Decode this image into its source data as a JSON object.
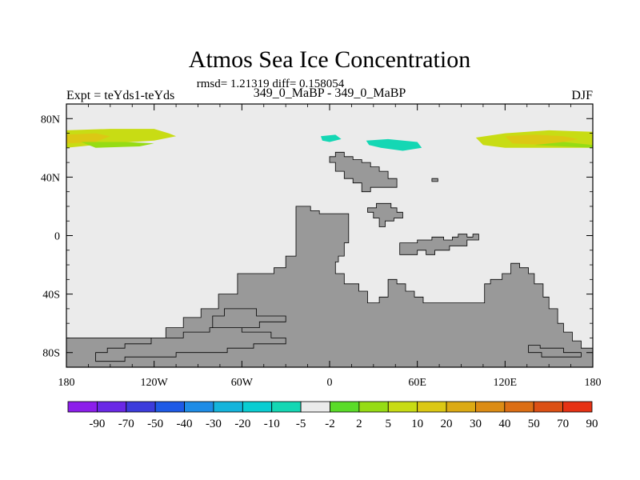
{
  "chart_data": {
    "type": "heatmap",
    "title": "Atmos Sea Ice Concentration",
    "stats_line": "rmsd= 1.21319 diff= 0.158054",
    "left_label": "Expt = teYds1-teYds",
    "center_label": "349_0_MaBP - 349_0_MaBP",
    "right_label": "DJF",
    "x_ticks": [
      {
        "value": -180,
        "label": "180"
      },
      {
        "value": -120,
        "label": "120W"
      },
      {
        "value": -60,
        "label": "60W"
      },
      {
        "value": 0,
        "label": "0"
      },
      {
        "value": 60,
        "label": "60E"
      },
      {
        "value": 120,
        "label": "120E"
      },
      {
        "value": 180,
        "label": "180"
      }
    ],
    "y_ticks": [
      {
        "value": 80,
        "label": "80N"
      },
      {
        "value": 40,
        "label": "40N"
      },
      {
        "value": 0,
        "label": "0"
      },
      {
        "value": -40,
        "label": "40S"
      },
      {
        "value": -80,
        "label": "80S"
      }
    ],
    "xlim": [
      -180,
      180
    ],
    "ylim": [
      -90,
      90
    ],
    "colorbar": {
      "colors": [
        "#8c1eeb",
        "#6a28e6",
        "#3c3cdc",
        "#1e5ae6",
        "#1e8ce6",
        "#14b4dc",
        "#0acdd2",
        "#14d7b4",
        "#ebebeb",
        "#5adc28",
        "#96dc14",
        "#c8dc14",
        "#dcc814",
        "#dcaa14",
        "#dc8c14",
        "#dc6e14",
        "#dc5014",
        "#e63214"
      ],
      "labels": [
        "-90",
        "-70",
        "-50",
        "-40",
        "-30",
        "-20",
        "-10",
        "-5",
        "-2",
        "2",
        "5",
        "10",
        "20",
        "30",
        "40",
        "50",
        "70",
        "90"
      ]
    },
    "land_color": "#999999",
    "background_color": "#ebebeb",
    "land_regions": [
      {
        "name": "north-atlantic-continent",
        "polygon": [
          [
            4,
            57
          ],
          [
            10,
            57
          ],
          [
            10,
            54
          ],
          [
            16,
            54
          ],
          [
            16,
            52
          ],
          [
            22,
            52
          ],
          [
            22,
            50
          ],
          [
            28,
            50
          ],
          [
            28,
            47
          ],
          [
            34,
            47
          ],
          [
            34,
            44
          ],
          [
            40,
            44
          ],
          [
            40,
            39
          ],
          [
            46,
            39
          ],
          [
            46,
            33
          ],
          [
            28,
            33
          ],
          [
            28,
            30
          ],
          [
            22,
            30
          ],
          [
            22,
            36
          ],
          [
            16,
            36
          ],
          [
            16,
            39
          ],
          [
            10,
            39
          ],
          [
            10,
            44
          ],
          [
            4,
            44
          ],
          [
            4,
            50
          ],
          [
            0,
            50
          ],
          [
            0,
            54
          ],
          [
            4,
            54
          ]
        ]
      },
      {
        "name": "small-island-east",
        "polygon": [
          [
            70,
            39
          ],
          [
            74,
            39
          ],
          [
            74,
            37
          ],
          [
            70,
            37
          ]
        ]
      },
      {
        "name": "mid-continent",
        "polygon": [
          [
            32,
            22
          ],
          [
            42,
            22
          ],
          [
            42,
            19
          ],
          [
            46,
            19
          ],
          [
            46,
            16
          ],
          [
            50,
            16
          ],
          [
            50,
            12
          ],
          [
            44,
            12
          ],
          [
            44,
            10
          ],
          [
            38,
            10
          ],
          [
            38,
            6
          ],
          [
            34,
            6
          ],
          [
            34,
            12
          ],
          [
            30,
            12
          ],
          [
            30,
            16
          ],
          [
            26,
            16
          ],
          [
            26,
            19
          ],
          [
            32,
            19
          ]
        ]
      },
      {
        "name": "main-pangea",
        "polygon": [
          [
            -23,
            20
          ],
          [
            -13,
            20
          ],
          [
            -13,
            17
          ],
          [
            -7,
            17
          ],
          [
            -7,
            15
          ],
          [
            13,
            15
          ],
          [
            13,
            -5
          ],
          [
            10,
            -5
          ],
          [
            10,
            -14
          ],
          [
            6,
            -14
          ],
          [
            6,
            -18
          ],
          [
            4,
            -18
          ],
          [
            4,
            -26
          ],
          [
            10,
            -26
          ],
          [
            10,
            -33
          ],
          [
            20,
            -33
          ],
          [
            20,
            -38
          ],
          [
            26,
            -38
          ],
          [
            26,
            -46
          ],
          [
            34,
            -46
          ],
          [
            34,
            -42
          ],
          [
            40,
            -42
          ],
          [
            40,
            -30
          ],
          [
            46,
            -30
          ],
          [
            46,
            -33
          ],
          [
            52,
            -33
          ],
          [
            52,
            -38
          ],
          [
            58,
            -38
          ],
          [
            58,
            -42
          ],
          [
            64,
            -42
          ],
          [
            64,
            -46
          ],
          [
            106,
            -46
          ],
          [
            106,
            -33
          ],
          [
            110,
            -33
          ],
          [
            110,
            -30
          ],
          [
            118,
            -30
          ],
          [
            118,
            -26
          ],
          [
            124,
            -26
          ],
          [
            124,
            -19
          ],
          [
            130,
            -19
          ],
          [
            130,
            -22
          ],
          [
            136,
            -22
          ],
          [
            136,
            -26
          ],
          [
            140,
            -26
          ],
          [
            140,
            -33
          ],
          [
            146,
            -33
          ],
          [
            146,
            -42
          ],
          [
            150,
            -42
          ],
          [
            150,
            -50
          ],
          [
            156,
            -50
          ],
          [
            156,
            -60
          ],
          [
            160,
            -60
          ],
          [
            160,
            -66
          ],
          [
            166,
            -66
          ],
          [
            166,
            -72
          ],
          [
            172,
            -72
          ],
          [
            172,
            -77
          ],
          [
            180,
            -77
          ],
          [
            180,
            -90
          ],
          [
            -180,
            -90
          ],
          [
            -180,
            -70
          ],
          [
            -112,
            -70
          ],
          [
            -112,
            -63
          ],
          [
            -100,
            -63
          ],
          [
            -100,
            -56
          ],
          [
            -88,
            -56
          ],
          [
            -88,
            -50
          ],
          [
            -76,
            -50
          ],
          [
            -76,
            -40
          ],
          [
            -63,
            -40
          ],
          [
            -63,
            -26
          ],
          [
            -38,
            -26
          ],
          [
            -38,
            -22
          ],
          [
            -30,
            -22
          ],
          [
            -30,
            -14
          ],
          [
            -23,
            -14
          ]
        ]
      },
      {
        "name": "southern-ocean-basin",
        "polygon": [
          [
            -160,
            -80
          ],
          [
            -152,
            -80
          ],
          [
            -152,
            -77
          ],
          [
            -140,
            -77
          ],
          [
            -140,
            -74
          ],
          [
            -122,
            -74
          ],
          [
            -122,
            -70
          ],
          [
            -100,
            -70
          ],
          [
            -100,
            -66
          ],
          [
            -82,
            -66
          ],
          [
            -82,
            -63
          ],
          [
            -60,
            -63
          ],
          [
            -60,
            -66
          ],
          [
            -40,
            -66
          ],
          [
            -40,
            -70
          ],
          [
            -30,
            -70
          ],
          [
            -30,
            -74
          ],
          [
            -52,
            -74
          ],
          [
            -52,
            -77
          ],
          [
            -70,
            -77
          ],
          [
            -70,
            -80
          ],
          [
            -105,
            -80
          ],
          [
            -105,
            -83
          ],
          [
            -140,
            -83
          ],
          [
            -140,
            -86
          ],
          [
            -160,
            -86
          ]
        ]
      },
      {
        "name": "antarctic-inlet",
        "polygon": [
          [
            -80,
            -55
          ],
          [
            -72,
            -55
          ],
          [
            -72,
            -50
          ],
          [
            -50,
            -50
          ],
          [
            -50,
            -55
          ],
          [
            -30,
            -55
          ],
          [
            -30,
            -59
          ],
          [
            -48,
            -59
          ],
          [
            -48,
            -63
          ],
          [
            -80,
            -63
          ]
        ]
      },
      {
        "name": "south-pacific-bay",
        "polygon": [
          [
            136,
            -75
          ],
          [
            144,
            -75
          ],
          [
            144,
            -77
          ],
          [
            160,
            -77
          ],
          [
            160,
            -80
          ],
          [
            172,
            -80
          ],
          [
            172,
            -83
          ],
          [
            145,
            -83
          ],
          [
            145,
            -80
          ],
          [
            136,
            -80
          ]
        ]
      },
      {
        "name": "southeast-peninsula",
        "polygon": [
          [
            48,
            -5
          ],
          [
            60,
            -5
          ],
          [
            60,
            -3
          ],
          [
            70,
            -3
          ],
          [
            70,
            -1
          ],
          [
            78,
            -1
          ],
          [
            78,
            -3
          ],
          [
            84,
            -3
          ],
          [
            84,
            -1
          ],
          [
            88,
            -1
          ],
          [
            88,
            1
          ],
          [
            94,
            1
          ],
          [
            94,
            -1
          ],
          [
            98,
            -1
          ],
          [
            98,
            1
          ],
          [
            102,
            1
          ],
          [
            102,
            -3
          ],
          [
            94,
            -3
          ],
          [
            94,
            -7
          ],
          [
            82,
            -7
          ],
          [
            82,
            -10
          ],
          [
            72,
            -10
          ],
          [
            72,
            -13
          ],
          [
            66,
            -13
          ],
          [
            66,
            -10
          ],
          [
            60,
            -10
          ],
          [
            60,
            -13
          ],
          [
            48,
            -13
          ]
        ]
      }
    ],
    "sea_ice_regions": [
      {
        "name": "arctic-band-west",
        "category": "10",
        "polygon": [
          [
            -180,
            72
          ],
          [
            -150,
            73
          ],
          [
            -120,
            73
          ],
          [
            -110,
            70
          ],
          [
            -105,
            68
          ],
          [
            -120,
            65
          ],
          [
            -150,
            63
          ],
          [
            -180,
            60
          ]
        ]
      },
      {
        "name": "arctic-band-east",
        "category": "10",
        "polygon": [
          [
            100,
            67
          ],
          [
            120,
            70
          ],
          [
            150,
            72
          ],
          [
            180,
            71
          ],
          [
            180,
            60
          ],
          [
            150,
            60
          ],
          [
            120,
            60
          ],
          [
            105,
            62
          ]
        ]
      },
      {
        "name": "arctic-patch-west-hi",
        "category": "20",
        "polygon": [
          [
            -180,
            69
          ],
          [
            -160,
            70
          ],
          [
            -150,
            68
          ],
          [
            -160,
            64
          ],
          [
            -180,
            63
          ]
        ]
      },
      {
        "name": "arctic-patch-east-hi",
        "category": "20",
        "polygon": [
          [
            120,
            68
          ],
          [
            140,
            69
          ],
          [
            160,
            68
          ],
          [
            170,
            66
          ],
          [
            150,
            62
          ],
          [
            125,
            63
          ]
        ]
      },
      {
        "name": "arctic-patch-west-lo",
        "category": "5",
        "polygon": [
          [
            -170,
            64
          ],
          [
            -140,
            64
          ],
          [
            -120,
            63
          ],
          [
            -130,
            61
          ],
          [
            -160,
            60
          ]
        ]
      },
      {
        "name": "arctic-patch-east-lo",
        "category": "5",
        "polygon": [
          [
            140,
            62
          ],
          [
            160,
            61
          ],
          [
            180,
            60
          ],
          [
            180,
            62
          ],
          [
            160,
            64
          ]
        ]
      },
      {
        "name": "teal-patch-central",
        "category": "-5",
        "polygon": [
          [
            -6,
            68
          ],
          [
            4,
            69
          ],
          [
            8,
            66
          ],
          [
            0,
            64
          ],
          [
            -5,
            65
          ]
        ]
      },
      {
        "name": "teal-patch-east",
        "category": "-5",
        "polygon": [
          [
            25,
            65
          ],
          [
            40,
            66
          ],
          [
            60,
            64
          ],
          [
            63,
            60
          ],
          [
            50,
            58
          ],
          [
            35,
            60
          ],
          [
            27,
            62
          ]
        ]
      }
    ]
  }
}
